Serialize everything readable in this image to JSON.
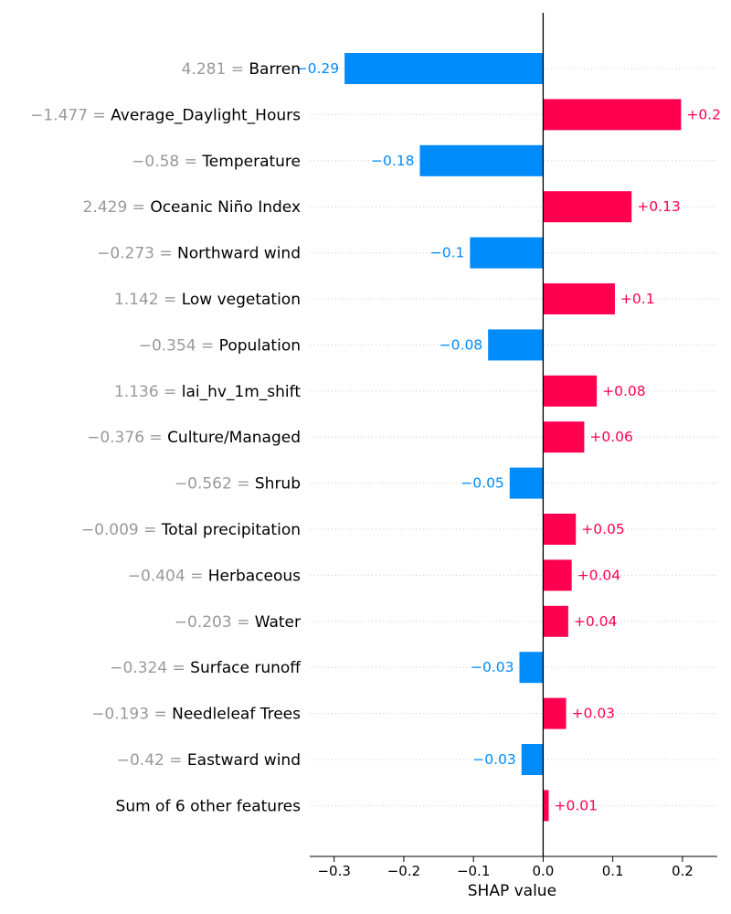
{
  "chart_data": {
    "type": "bar",
    "orientation": "horizontal",
    "xlabel": "SHAP value",
    "xlim": [
      -0.335,
      0.25
    ],
    "xticks": [
      -0.3,
      -0.2,
      -0.1,
      0.0,
      0.1,
      0.2
    ],
    "xtick_labels": [
      "−0.3",
      "−0.2",
      "−0.1",
      "0.0",
      "0.1",
      "0.2"
    ],
    "grid": "dotted horizontal row lines",
    "colors": {
      "positive": "#ff0051",
      "negative": "#008bfb",
      "feature_value": "#999999"
    },
    "features": [
      {
        "value_text": "4.281 = ",
        "name": "Barren",
        "shap": -0.285,
        "label": "−0.29"
      },
      {
        "value_text": "−1.477 = ",
        "name": "Average_Daylight_Hours",
        "shap": 0.198,
        "label": "+0.2"
      },
      {
        "value_text": "−0.58 = ",
        "name": "Temperature",
        "shap": -0.177,
        "label": "−0.18"
      },
      {
        "value_text": "2.429 = ",
        "name": "Oceanic Niño Index",
        "shap": 0.127,
        "label": "+0.13"
      },
      {
        "value_text": "−0.273 = ",
        "name": "Northward wind",
        "shap": -0.105,
        "label": "−0.1"
      },
      {
        "value_text": "1.142 = ",
        "name": "Low vegetation",
        "shap": 0.103,
        "label": "+0.1"
      },
      {
        "value_text": "−0.354 = ",
        "name": "Population",
        "shap": -0.079,
        "label": "−0.08"
      },
      {
        "value_text": "1.136 = ",
        "name": "lai_hv_1m_shift",
        "shap": 0.077,
        "label": "+0.08"
      },
      {
        "value_text": "−0.376 = ",
        "name": "Culture/Managed",
        "shap": 0.059,
        "label": "+0.06"
      },
      {
        "value_text": "−0.562 = ",
        "name": "Shrub",
        "shap": -0.048,
        "label": "−0.05"
      },
      {
        "value_text": "−0.009 = ",
        "name": "Total precipitation",
        "shap": 0.047,
        "label": "+0.05"
      },
      {
        "value_text": "−0.404 = ",
        "name": "Herbaceous",
        "shap": 0.041,
        "label": "+0.04"
      },
      {
        "value_text": "−0.203 = ",
        "name": "Water",
        "shap": 0.036,
        "label": "+0.04"
      },
      {
        "value_text": "−0.324 = ",
        "name": "Surface runoff",
        "shap": -0.034,
        "label": "−0.03"
      },
      {
        "value_text": "−0.193 = ",
        "name": "Needleleaf Trees",
        "shap": 0.033,
        "label": "+0.03"
      },
      {
        "value_text": "−0.42 = ",
        "name": "Eastward wind",
        "shap": -0.031,
        "label": "−0.03"
      },
      {
        "value_text": "",
        "name": "Sum of 6 other features",
        "shap": 0.008,
        "label": "+0.01"
      }
    ]
  }
}
